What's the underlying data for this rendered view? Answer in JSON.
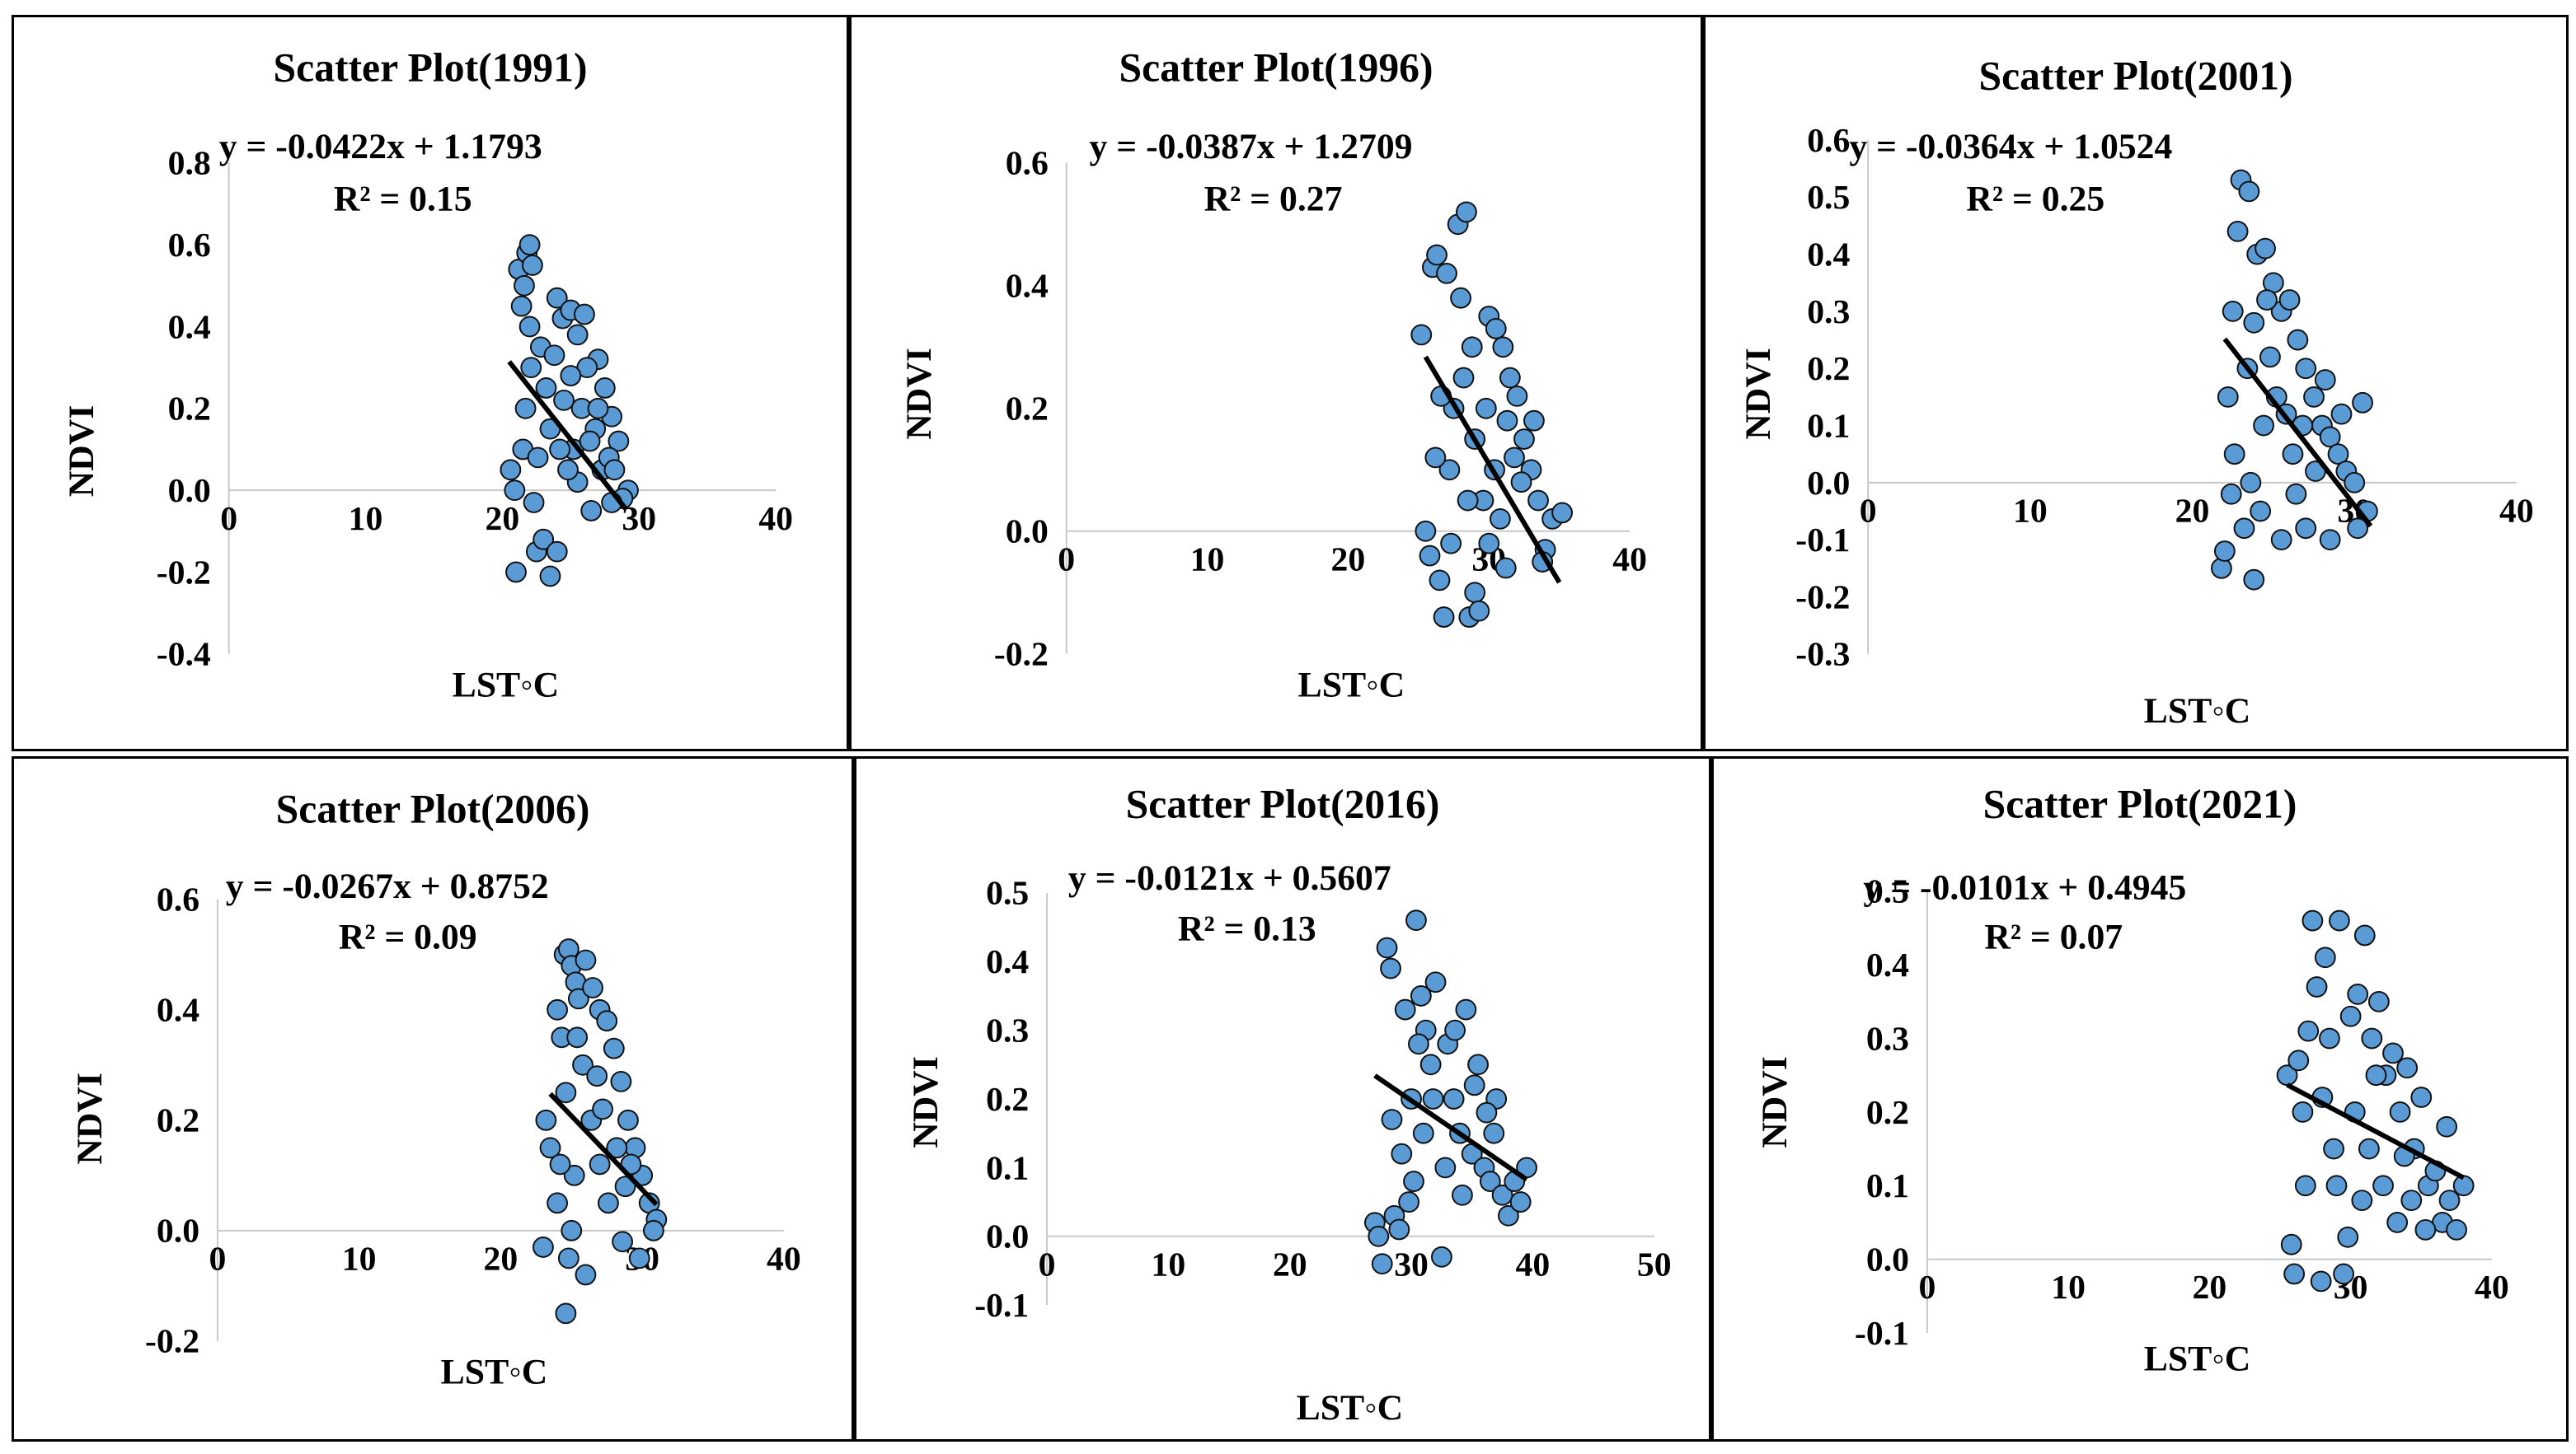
{
  "figure": "NDVI vs LST scatter plots",
  "colors": {
    "marker_fill": "#5b9bd5",
    "marker_edge": "#111111",
    "trend_line": "#000000",
    "axis": "#c8c8c8"
  },
  "chart_data": [
    {
      "type": "scatter",
      "title": "Scatter Plot(1991)",
      "xlabel": "LST◦C",
      "ylabel": "NDVI",
      "xlim": [
        0,
        40
      ],
      "ylim": [
        -0.4,
        0.8
      ],
      "xticks": [
        "0",
        "10",
        "20",
        "30",
        "40"
      ],
      "yticks": [
        "-0.4",
        "-0.2",
        "0.0",
        "0.2",
        "0.4",
        "0.6",
        "0.8"
      ],
      "equation": "y = -0.0422x + 1.1793",
      "r2": "R² = 0.15",
      "trend": {
        "slope": -0.0422,
        "intercept": 1.1793,
        "x_range": [
          20.5,
          29
        ]
      },
      "points": [
        [
          20.6,
          0.05
        ],
        [
          20.9,
          0.0
        ],
        [
          21.0,
          -0.2
        ],
        [
          21.2,
          0.54
        ],
        [
          21.4,
          0.45
        ],
        [
          21.6,
          0.5
        ],
        [
          21.8,
          0.58
        ],
        [
          22.0,
          0.6
        ],
        [
          22.2,
          0.55
        ],
        [
          22.1,
          0.3
        ],
        [
          21.7,
          0.2
        ],
        [
          21.5,
          0.1
        ],
        [
          22.3,
          -0.03
        ],
        [
          22.5,
          -0.15
        ],
        [
          23.0,
          -0.12
        ],
        [
          23.5,
          -0.21
        ],
        [
          24.0,
          -0.15
        ],
        [
          24.0,
          0.47
        ],
        [
          24.4,
          0.42
        ],
        [
          25.0,
          0.44
        ],
        [
          25.5,
          0.38
        ],
        [
          26.0,
          0.43
        ],
        [
          27.0,
          0.32
        ],
        [
          27.5,
          0.25
        ],
        [
          28.0,
          0.18
        ],
        [
          28.5,
          0.12
        ],
        [
          29.2,
          0.0
        ],
        [
          28.8,
          -0.02
        ],
        [
          28.0,
          -0.03
        ],
        [
          26.5,
          -0.05
        ],
        [
          25.5,
          0.02
        ],
        [
          22.0,
          0.4
        ],
        [
          22.8,
          0.35
        ],
        [
          23.5,
          0.15
        ],
        [
          24.5,
          0.22
        ],
        [
          25.2,
          0.1
        ],
        [
          26.2,
          0.3
        ],
        [
          26.8,
          0.15
        ],
        [
          27.3,
          0.05
        ],
        [
          27.8,
          0.08
        ],
        [
          23.2,
          0.25
        ],
        [
          22.6,
          0.08
        ],
        [
          24.8,
          0.05
        ],
        [
          25.8,
          0.2
        ],
        [
          26.4,
          0.12
        ],
        [
          23.8,
          0.33
        ],
        [
          24.2,
          0.1
        ],
        [
          25.0,
          0.28
        ],
        [
          27.0,
          0.2
        ],
        [
          28.2,
          0.05
        ]
      ]
    },
    {
      "type": "scatter",
      "title": "Scatter Plot(1996)",
      "xlabel": "LST◦C",
      "ylabel": "NDVI",
      "xlim": [
        0,
        40
      ],
      "ylim": [
        -0.2,
        0.6
      ],
      "xticks": [
        "0",
        "10",
        "20",
        "30",
        "40"
      ],
      "yticks": [
        "-0.2",
        "0.0",
        "0.2",
        "0.4",
        "0.6"
      ],
      "equation": "y = -0.0387x + 1.2709",
      "r2": "R² = 0.27",
      "trend": {
        "slope": -0.0387,
        "intercept": 1.2709,
        "x_range": [
          25.5,
          35
        ]
      },
      "points": [
        [
          25.2,
          0.32
        ],
        [
          25.5,
          0.0
        ],
        [
          25.8,
          -0.04
        ],
        [
          26.0,
          0.43
        ],
        [
          26.3,
          0.45
        ],
        [
          26.5,
          -0.08
        ],
        [
          26.8,
          -0.14
        ],
        [
          27.0,
          0.42
        ],
        [
          27.3,
          -0.02
        ],
        [
          27.8,
          0.5
        ],
        [
          28.4,
          0.52
        ],
        [
          28.0,
          0.38
        ],
        [
          28.6,
          -0.14
        ],
        [
          29.0,
          -0.1
        ],
        [
          29.3,
          -0.13
        ],
        [
          30.0,
          0.35
        ],
        [
          30.5,
          0.33
        ],
        [
          31.0,
          0.3
        ],
        [
          31.5,
          0.25
        ],
        [
          32.0,
          0.22
        ],
        [
          32.5,
          0.15
        ],
        [
          33.0,
          0.1
        ],
        [
          33.5,
          0.05
        ],
        [
          34.0,
          -0.03
        ],
        [
          34.5,
          0.02
        ],
        [
          35.2,
          0.03
        ],
        [
          33.8,
          -0.05
        ],
        [
          31.2,
          -0.06
        ],
        [
          30.0,
          -0.02
        ],
        [
          27.5,
          0.2
        ],
        [
          28.2,
          0.25
        ],
        [
          29.0,
          0.15
        ],
        [
          29.6,
          0.05
        ],
        [
          30.4,
          0.1
        ],
        [
          31.3,
          0.18
        ],
        [
          27.2,
          0.1
        ],
        [
          26.6,
          0.22
        ],
        [
          28.8,
          0.3
        ],
        [
          29.8,
          0.2
        ],
        [
          30.8,
          0.02
        ],
        [
          32.3,
          0.08
        ],
        [
          26.2,
          0.12
        ],
        [
          28.5,
          0.05
        ],
        [
          31.8,
          0.12
        ],
        [
          33.2,
          0.18
        ]
      ]
    },
    {
      "type": "scatter",
      "title": "Scatter Plot(2001)",
      "xlabel": "LST◦C",
      "ylabel": "NDVI",
      "xlim": [
        0,
        40
      ],
      "ylim": [
        -0.3,
        0.6
      ],
      "xticks": [
        "0",
        "10",
        "20",
        "30",
        "40"
      ],
      "yticks": [
        "-0.3",
        "-0.2",
        "-0.1",
        "0.0",
        "0.1",
        "0.2",
        "0.3",
        "0.4",
        "0.5",
        "0.6"
      ],
      "equation": "y = -0.0364x + 1.0524",
      "r2": "R² = 0.25",
      "trend": {
        "slope": -0.0364,
        "intercept": 1.0524,
        "x_range": [
          22,
          31
        ]
      },
      "points": [
        [
          21.8,
          -0.15
        ],
        [
          22.0,
          -0.12
        ],
        [
          22.2,
          0.15
        ],
        [
          22.5,
          0.3
        ],
        [
          22.8,
          0.44
        ],
        [
          23.0,
          0.53
        ],
        [
          23.5,
          0.51
        ],
        [
          23.2,
          -0.08
        ],
        [
          23.8,
          -0.17
        ],
        [
          24.0,
          0.4
        ],
        [
          24.5,
          0.41
        ],
        [
          24.2,
          -0.05
        ],
        [
          25.0,
          0.35
        ],
        [
          25.5,
          0.3
        ],
        [
          26.0,
          0.32
        ],
        [
          26.5,
          0.25
        ],
        [
          27.0,
          0.2
        ],
        [
          27.5,
          0.15
        ],
        [
          28.0,
          0.1
        ],
        [
          28.5,
          0.08
        ],
        [
          29.0,
          0.05
        ],
        [
          29.5,
          0.02
        ],
        [
          30.0,
          0.0
        ],
        [
          30.5,
          0.14
        ],
        [
          30.8,
          -0.05
        ],
        [
          30.2,
          -0.08
        ],
        [
          28.5,
          -0.1
        ],
        [
          27.0,
          -0.08
        ],
        [
          25.5,
          -0.1
        ],
        [
          22.6,
          0.05
        ],
        [
          23.4,
          0.2
        ],
        [
          24.4,
          0.1
        ],
        [
          25.2,
          0.15
        ],
        [
          26.2,
          0.05
        ],
        [
          26.8,
          0.1
        ],
        [
          27.6,
          0.02
        ],
        [
          23.8,
          0.28
        ],
        [
          24.8,
          0.22
        ],
        [
          22.4,
          -0.02
        ],
        [
          25.8,
          0.12
        ],
        [
          28.2,
          0.18
        ],
        [
          29.2,
          0.12
        ],
        [
          23.6,
          0.0
        ],
        [
          26.4,
          -0.02
        ],
        [
          24.6,
          0.32
        ]
      ]
    },
    {
      "type": "scatter",
      "title": "Scatter Plot(2006)",
      "xlabel": "LST◦C",
      "ylabel": "NDVI",
      "xlim": [
        0,
        40
      ],
      "ylim": [
        -0.2,
        0.6
      ],
      "xticks": [
        "0",
        "10",
        "20",
        "30",
        "40"
      ],
      "yticks": [
        "-0.2",
        "0.0",
        "0.2",
        "0.4",
        "0.6"
      ],
      "equation": "y = -0.0267x + 0.8752",
      "r2": "R² = 0.09",
      "trend": {
        "slope": -0.0267,
        "intercept": 0.8752,
        "x_range": [
          23.5,
          31
        ]
      },
      "points": [
        [
          23.2,
          0.2
        ],
        [
          23.5,
          0.15
        ],
        [
          23.0,
          -0.03
        ],
        [
          24.0,
          0.4
        ],
        [
          24.3,
          0.35
        ],
        [
          24.5,
          0.5
        ],
        [
          24.8,
          0.51
        ],
        [
          25.0,
          0.48
        ],
        [
          25.3,
          0.45
        ],
        [
          24.6,
          -0.15
        ],
        [
          25.5,
          0.42
        ],
        [
          26.0,
          0.49
        ],
        [
          26.5,
          0.44
        ],
        [
          27.0,
          0.4
        ],
        [
          27.5,
          0.38
        ],
        [
          28.0,
          0.33
        ],
        [
          28.5,
          0.27
        ],
        [
          29.0,
          0.2
        ],
        [
          29.5,
          0.15
        ],
        [
          30.0,
          0.1
        ],
        [
          30.5,
          0.05
        ],
        [
          31.0,
          0.02
        ],
        [
          30.8,
          0.0
        ],
        [
          29.8,
          -0.05
        ],
        [
          28.6,
          -0.02
        ],
        [
          26.0,
          -0.08
        ],
        [
          24.8,
          -0.05
        ],
        [
          24.0,
          0.05
        ],
        [
          24.6,
          0.25
        ],
        [
          25.2,
          0.1
        ],
        [
          25.8,
          0.3
        ],
        [
          26.4,
          0.2
        ],
        [
          27.0,
          0.12
        ],
        [
          27.6,
          0.05
        ],
        [
          28.2,
          0.15
        ],
        [
          28.8,
          0.08
        ],
        [
          25.4,
          0.35
        ],
        [
          26.8,
          0.28
        ],
        [
          24.2,
          0.12
        ],
        [
          27.2,
          0.22
        ],
        [
          29.2,
          0.12
        ],
        [
          25.0,
          0.0
        ]
      ]
    },
    {
      "type": "scatter",
      "title": "Scatter Plot(2016)",
      "xlabel": "LST◦C",
      "ylabel": "NDVI",
      "xlim": [
        0,
        50
      ],
      "ylim": [
        -0.1,
        0.5
      ],
      "xticks": [
        "0",
        "10",
        "20",
        "30",
        "40",
        "50"
      ],
      "yticks": [
        "-0.1",
        "0.0",
        "0.1",
        "0.2",
        "0.3",
        "0.4",
        "0.5"
      ],
      "equation": "y = -0.0121x + 0.5607",
      "r2": "R² = 0.13",
      "trend": {
        "slope": -0.0121,
        "intercept": 0.5607,
        "x_range": [
          27,
          39.5
        ]
      },
      "points": [
        [
          27.0,
          0.02
        ],
        [
          27.3,
          0.0
        ],
        [
          27.6,
          -0.04
        ],
        [
          28.0,
          0.42
        ],
        [
          28.3,
          0.39
        ],
        [
          28.6,
          0.03
        ],
        [
          29.0,
          0.01
        ],
        [
          29.5,
          0.33
        ],
        [
          30.0,
          0.2
        ],
        [
          30.4,
          0.46
        ],
        [
          30.8,
          0.35
        ],
        [
          31.2,
          0.3
        ],
        [
          31.6,
          0.25
        ],
        [
          32.0,
          0.37
        ],
        [
          32.5,
          -0.03
        ],
        [
          33.0,
          0.28
        ],
        [
          33.5,
          0.2
        ],
        [
          34.0,
          0.15
        ],
        [
          34.5,
          0.33
        ],
        [
          35.0,
          0.12
        ],
        [
          35.5,
          0.25
        ],
        [
          36.0,
          0.1
        ],
        [
          36.5,
          0.08
        ],
        [
          37.0,
          0.2
        ],
        [
          37.5,
          0.06
        ],
        [
          38.0,
          0.03
        ],
        [
          38.5,
          0.08
        ],
        [
          39.0,
          0.05
        ],
        [
          39.5,
          0.1
        ],
        [
          36.8,
          0.15
        ],
        [
          34.2,
          0.06
        ],
        [
          32.8,
          0.1
        ],
        [
          31.0,
          0.15
        ],
        [
          30.2,
          0.08
        ],
        [
          29.2,
          0.12
        ],
        [
          28.4,
          0.17
        ],
        [
          33.6,
          0.3
        ],
        [
          35.2,
          0.22
        ],
        [
          31.8,
          0.2
        ],
        [
          30.6,
          0.28
        ],
        [
          29.8,
          0.05
        ],
        [
          36.2,
          0.18
        ]
      ]
    },
    {
      "type": "scatter",
      "title": "Scatter Plot(2021)",
      "xlabel": "LST◦C",
      "ylabel": "NDVI",
      "xlim": [
        0,
        40
      ],
      "ylim": [
        -0.1,
        0.5
      ],
      "xticks": [
        "0",
        "10",
        "20",
        "30",
        "40"
      ],
      "yticks": [
        "-0.1",
        "0.0",
        "0.1",
        "0.2",
        "0.3",
        "0.4",
        "0.5"
      ],
      "equation": "y = -0.0101x + 0.4945",
      "r2": "R² = 0.07",
      "trend": {
        "slope": -0.0101,
        "intercept": 0.4945,
        "x_range": [
          25.5,
          38
        ]
      },
      "points": [
        [
          25.5,
          0.25
        ],
        [
          25.8,
          0.02
        ],
        [
          26.0,
          -0.02
        ],
        [
          26.3,
          0.27
        ],
        [
          26.6,
          0.2
        ],
        [
          27.0,
          0.31
        ],
        [
          27.3,
          0.46
        ],
        [
          27.6,
          0.37
        ],
        [
          27.9,
          -0.03
        ],
        [
          28.2,
          0.41
        ],
        [
          28.5,
          0.3
        ],
        [
          28.8,
          0.15
        ],
        [
          29.2,
          0.46
        ],
        [
          29.5,
          -0.02
        ],
        [
          29.8,
          0.03
        ],
        [
          30.0,
          0.33
        ],
        [
          30.5,
          0.36
        ],
        [
          31.0,
          0.44
        ],
        [
          31.5,
          0.3
        ],
        [
          32.0,
          0.35
        ],
        [
          32.5,
          0.25
        ],
        [
          33.0,
          0.28
        ],
        [
          33.5,
          0.2
        ],
        [
          34.0,
          0.26
        ],
        [
          34.5,
          0.15
        ],
        [
          35.0,
          0.22
        ],
        [
          35.5,
          0.1
        ],
        [
          36.0,
          0.12
        ],
        [
          36.5,
          0.05
        ],
        [
          37.0,
          0.08
        ],
        [
          37.5,
          0.04
        ],
        [
          38.0,
          0.1
        ],
        [
          29.0,
          0.1
        ],
        [
          30.3,
          0.2
        ],
        [
          31.3,
          0.15
        ],
        [
          32.3,
          0.1
        ],
        [
          33.3,
          0.05
        ],
        [
          34.3,
          0.08
        ],
        [
          35.3,
          0.04
        ],
        [
          26.8,
          0.1
        ],
        [
          28.0,
          0.22
        ],
        [
          31.8,
          0.25
        ],
        [
          33.8,
          0.14
        ],
        [
          36.8,
          0.18
        ],
        [
          30.8,
          0.08
        ]
      ]
    }
  ]
}
